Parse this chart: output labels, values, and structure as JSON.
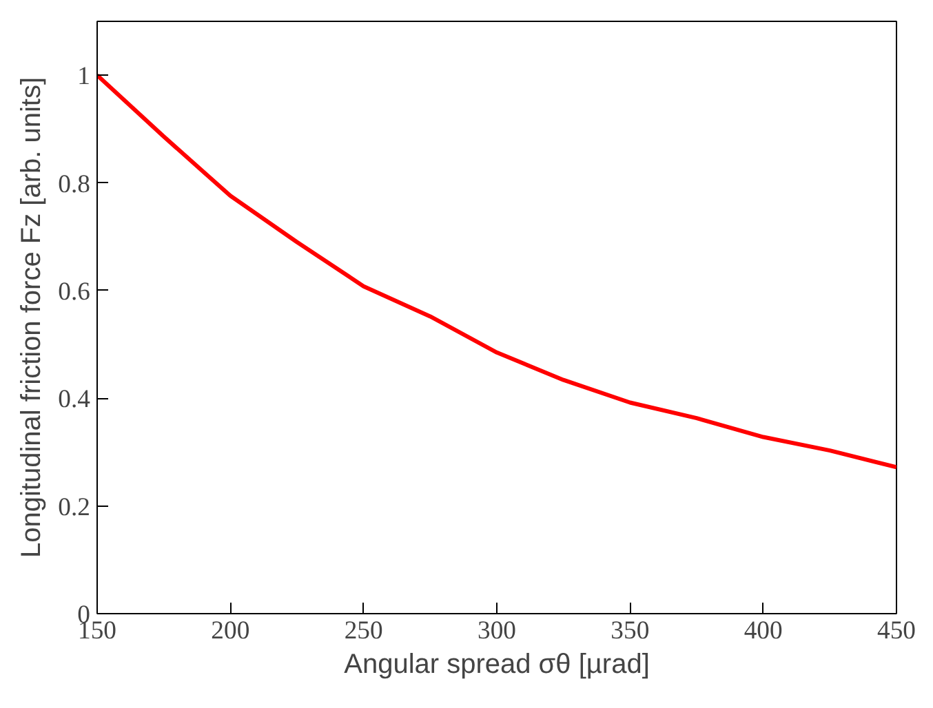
{
  "chart_data": {
    "type": "line",
    "xlabel": "Angular spread σθ [µrad]",
    "ylabel": "Longitudinal friction force Fz [arb. units]",
    "x": [
      150,
      175,
      200,
      225,
      250,
      275,
      300,
      325,
      350,
      375,
      400,
      425,
      450
    ],
    "series": [
      {
        "color": "#ff0000",
        "values": [
          1.0,
          0.886,
          0.776,
          0.69,
          0.608,
          0.552,
          0.485,
          0.434,
          0.392,
          0.363,
          0.328,
          0.303,
          0.272
        ]
      }
    ],
    "xlim": [
      150,
      450
    ],
    "ylim": [
      0,
      1.1
    ],
    "xticks": [
      150,
      200,
      250,
      300,
      350,
      400,
      450
    ],
    "yticks": [
      0,
      0.2,
      0.4,
      0.6,
      0.8,
      1
    ],
    "grid": false,
    "marker": "none",
    "line_style": "solid"
  }
}
